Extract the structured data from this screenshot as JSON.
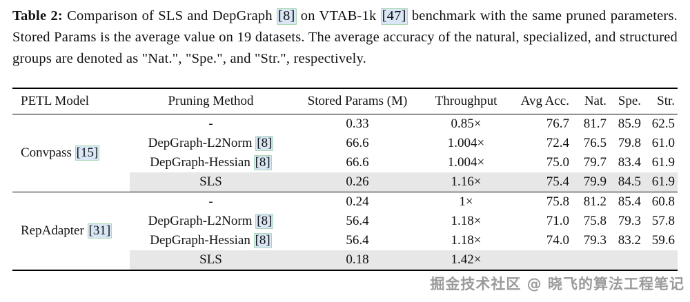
{
  "caption": {
    "label": "Table 2:",
    "seg1": "Comparison of SLS and DepGraph",
    "cite1": "[8]",
    "seg2": "on VTAB-1k",
    "cite2": "[47]",
    "seg3": "benchmark with the same pruned parameters. Stored Params is the average value on 19 datasets. The average accuracy of the natural, specialized, and structured groups are denoted as \"Nat.\", \"Spe.\", and \"Str.\", respectively."
  },
  "table": {
    "headers": {
      "model": "PETL Model",
      "method": "Pruning Method",
      "params": "Stored Params (M)",
      "throughput": "Throughput",
      "avg": "Avg Acc.",
      "nat": "Nat.",
      "spe": "Spe.",
      "str": "Str."
    },
    "groups": [
      {
        "model": "Convpass",
        "model_cite": "[15]",
        "rows": [
          {
            "method": "-",
            "cite": "",
            "params": "0.33",
            "throughput": "0.85×",
            "avg": "76.7",
            "nat": "81.7",
            "spe": "85.9",
            "str": "62.5"
          },
          {
            "method": "DepGraph-L2Norm",
            "cite": "[8]",
            "params": "66.6",
            "throughput": "1.004×",
            "avg": "72.4",
            "nat": "76.5",
            "spe": "79.8",
            "str": "61.0"
          },
          {
            "method": "DepGraph-Hessian",
            "cite": "[8]",
            "params": "66.6",
            "throughput": "1.004×",
            "avg": "75.0",
            "nat": "79.7",
            "spe": "83.4",
            "str": "61.9"
          },
          {
            "method": "SLS",
            "cite": "",
            "params": "0.26",
            "throughput": "1.16×",
            "avg": "75.4",
            "nat": "79.9",
            "spe": "84.5",
            "str": "61.9"
          }
        ]
      },
      {
        "model": "RepAdapter",
        "model_cite": "[31]",
        "rows": [
          {
            "method": "-",
            "cite": "",
            "params": "0.24",
            "throughput": "1×",
            "avg": "75.8",
            "nat": "81.2",
            "spe": "85.4",
            "str": "60.8"
          },
          {
            "method": "DepGraph-L2Norm",
            "cite": "[8]",
            "params": "56.4",
            "throughput": "1.18×",
            "avg": "71.0",
            "nat": "75.8",
            "spe": "79.3",
            "str": "57.8"
          },
          {
            "method": "DepGraph-Hessian",
            "cite": "[8]",
            "params": "56.4",
            "throughput": "1.18×",
            "avg": "74.0",
            "nat": "79.3",
            "spe": "83.2",
            "str": "59.6"
          },
          {
            "method": "SLS",
            "cite": "",
            "params": "0.18",
            "throughput": "1.42×",
            "avg": "",
            "nat": "",
            "spe": "",
            "str": ""
          }
        ]
      }
    ]
  },
  "watermark": "掘金技术社区 @ 晓飞的算法工程笔记",
  "colors": {
    "highlight_row": "#e7e7e7",
    "citation_bg": "#d8e6f6",
    "citation_border": "#a9d7b4"
  }
}
